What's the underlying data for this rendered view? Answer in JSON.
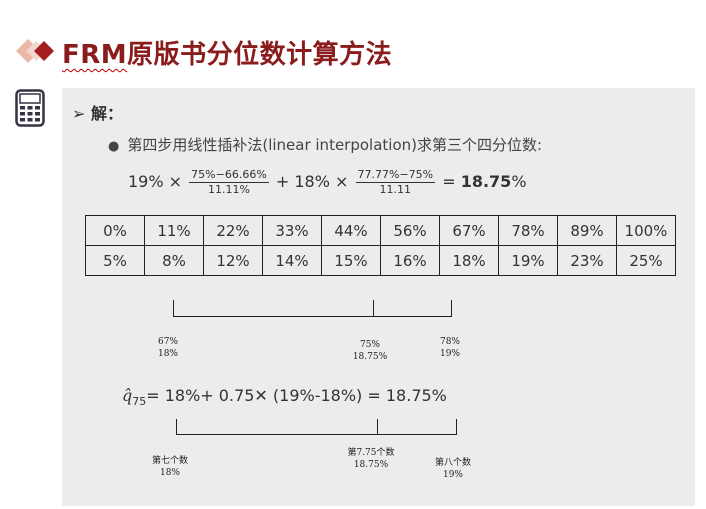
{
  "header": {
    "title_prefix": "FRM",
    "title_rest": "原版书分位数计算方法"
  },
  "content": {
    "answer_label": "解：",
    "step_text": "第四步用线性插补法(linear interpolation)求第三个四分位数:",
    "formula": {
      "term1_coef": "19% ×",
      "term1_num": "75%−66.66%",
      "term1_den": "11.11%",
      "plus": "+ 18% ×",
      "term2_num": "77.77%−75%",
      "term2_den": "11.11",
      "equals": "=",
      "result": "18.75",
      "result_unit": "%"
    },
    "table": {
      "row1": [
        "0%",
        "11%",
        "22%",
        "33%",
        "44%",
        "56%",
        "67%",
        "78%",
        "89%",
        "100%"
      ],
      "row2": [
        "5%",
        "8%",
        "12%",
        "14%",
        "15%",
        "16%",
        "18%",
        "19%",
        "23%",
        "25%"
      ]
    },
    "bracket1_labels": [
      {
        "top": "67%",
        "bottom": "18%"
      },
      {
        "top": "75%",
        "bottom": "18.75%"
      },
      {
        "top": "78%",
        "bottom": "19%"
      }
    ],
    "q_formula": {
      "symbol": "q̂",
      "subscript": "75",
      "expression": "= 18%+ 0.75✕ (19%-18%) = 18.75%"
    },
    "bracket2_labels": [
      {
        "top": "第七个数",
        "bottom": "18%"
      },
      {
        "top": "第7.75个数",
        "bottom": "18.75%"
      },
      {
        "top": "第八个数",
        "bottom": "19%"
      }
    ],
    "colors": {
      "title": "#8b1c1c",
      "panel": "#ececec",
      "diamond_dark": "#a31f1f",
      "diamond_light": "#e9b8a8"
    }
  }
}
